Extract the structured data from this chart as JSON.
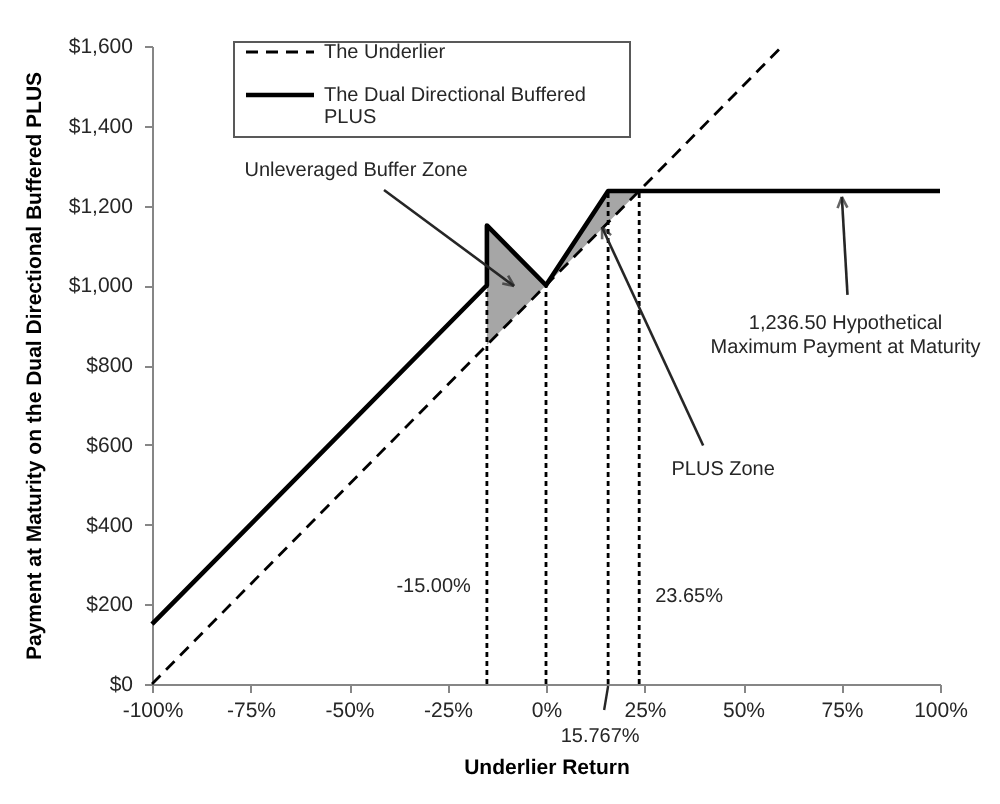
{
  "chart_data": {
    "type": "line",
    "xlabel": "Underlier Return",
    "ylabel": "Payment at Maturity on the Dual Directional Buffered PLUS",
    "series": [
      {
        "name": "The Underlier",
        "color": "#000000",
        "line_style": "dashed",
        "x": [
          -100,
          60
        ],
        "values": [
          0,
          1600
        ]
      },
      {
        "name": "The Dual Directional Buffered PLUS",
        "color": "#000000",
        "line_style": "solid",
        "x": [
          -100,
          -15,
          -15,
          0,
          15.767,
          23.65,
          100
        ],
        "values": [
          150,
          1000,
          1150,
          1000,
          1236.5,
          1236.5,
          1236.5
        ],
        "lower": [
          null,
          null,
          850,
          1000,
          1157.67,
          1236.5,
          null
        ],
        "upper": [
          null,
          null,
          1150,
          1000,
          1236.5,
          1236.5,
          null
        ]
      }
    ],
    "xlim": [
      -100,
      100
    ],
    "xticks": [
      {
        "value": -100,
        "label": "-100%"
      },
      {
        "value": -75,
        "label": "-75%"
      },
      {
        "value": -50,
        "label": "-50%"
      },
      {
        "value": -25,
        "label": "-25%"
      },
      {
        "value": 0,
        "label": "0%"
      },
      {
        "value": 25,
        "label": "25%"
      },
      {
        "value": 50,
        "label": "50%"
      },
      {
        "value": 75,
        "label": "75%"
      },
      {
        "value": 100,
        "label": "100%"
      }
    ],
    "ylim": [
      0,
      1600
    ],
    "yticks": [
      {
        "value": 0,
        "label": "$0"
      },
      {
        "value": 200,
        "label": "$200"
      },
      {
        "value": 400,
        "label": "$400"
      },
      {
        "value": 600,
        "label": "$600"
      },
      {
        "value": 800,
        "label": "$800"
      },
      {
        "value": 1000,
        "label": "$1,000"
      },
      {
        "value": 1200,
        "label": "$1,200"
      },
      {
        "value": 1400,
        "label": "$1,400"
      },
      {
        "value": 1600,
        "label": "$1,600"
      }
    ],
    "ref_lines": [
      {
        "axis": "x",
        "value": -15,
        "label": "-15.00%",
        "color": "#000000",
        "line_style": "dotted"
      },
      {
        "axis": "x",
        "value": 0,
        "color": "#000000",
        "line_style": "dotted"
      },
      {
        "axis": "x",
        "value": 15.767,
        "label": "15.767%",
        "color": "#000000",
        "line_style": "dotted"
      },
      {
        "axis": "x",
        "value": 23.65,
        "label": "23.65%",
        "color": "#000000",
        "line_style": "dotted"
      }
    ],
    "annotations": [
      "Unleveraged Buffer Zone",
      {
        "text": "PLUS Zone",
        "x": 14,
        "y": 1150
      },
      {
        "text": "1,236.50 Hypothetical Maximum Payment at Maturity",
        "x": 75,
        "y": 1236.5
      }
    ],
    "legend": "top left",
    "grid": false
  }
}
